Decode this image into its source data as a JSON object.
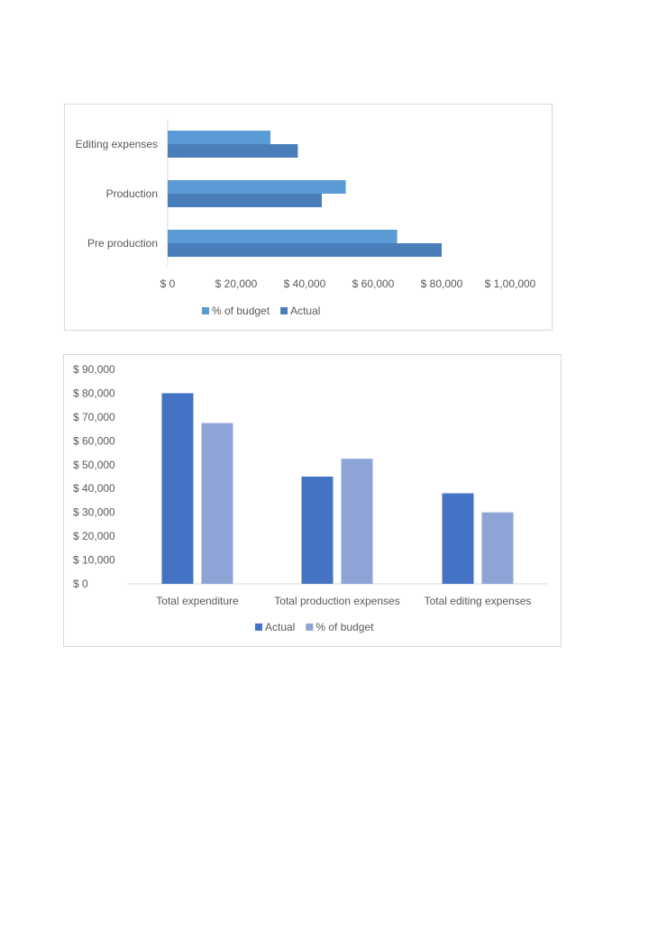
{
  "chart_data": [
    {
      "type": "bar",
      "orientation": "horizontal",
      "categories": [
        "Editing expenses",
        "Production",
        "Pre production"
      ],
      "series": [
        {
          "name": "% of budget",
          "values": [
            30000,
            52000,
            67000
          ],
          "color": "#5B9BD5"
        },
        {
          "name": "Actual",
          "values": [
            38000,
            45000,
            80000
          ],
          "color": "#4A7EBB"
        }
      ],
      "x_ticks": [
        "$ 0",
        "$ 20,000",
        "$ 40,000",
        "$ 60,000",
        "$ 80,000",
        "$ 1,00,000"
      ],
      "xlim": [
        0,
        100000
      ],
      "grid": false,
      "legend": "bottom"
    },
    {
      "type": "bar",
      "orientation": "vertical",
      "categories": [
        "Total expenditure",
        "Total production expenses",
        "Total editing expenses"
      ],
      "series": [
        {
          "name": "Actual",
          "values": [
            80000,
            45000,
            38000
          ],
          "color": "#4472C4"
        },
        {
          "name": "% of budget",
          "values": [
            67500,
            52500,
            30000
          ],
          "color": "#8FA4D6"
        }
      ],
      "y_ticks": [
        "$ 0",
        "$ 10,000",
        "$ 20,000",
        "$ 30,000",
        "$ 40,000",
        "$ 50,000",
        "$ 60,000",
        "$ 70,000",
        "$ 80,000",
        "$ 90,000"
      ],
      "ylim": [
        0,
        90000
      ],
      "grid": false,
      "legend": "bottom"
    }
  ]
}
